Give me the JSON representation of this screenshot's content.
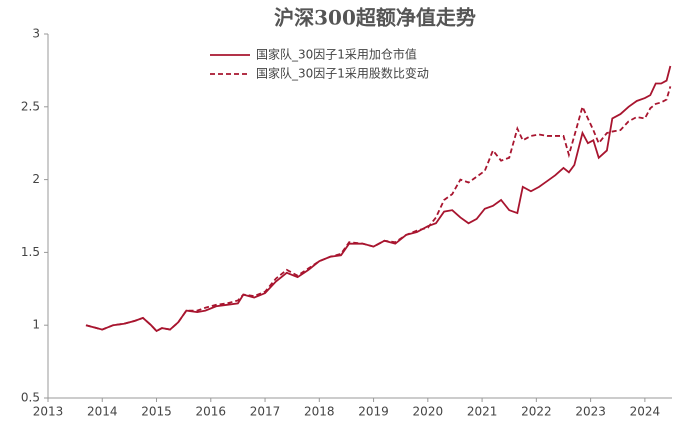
{
  "chart_data": {
    "type": "line",
    "title": "沪深300超额净值走势",
    "x": [
      2013.7,
      2013.9,
      2014.0,
      2014.2,
      2014.4,
      2014.6,
      2014.75,
      2014.9,
      2015.0,
      2015.1,
      2015.25,
      2015.4,
      2015.55,
      2015.75,
      2015.9,
      2016.1,
      2016.3,
      2016.5,
      2016.6,
      2016.8,
      2017.0,
      2017.2,
      2017.4,
      2017.6,
      2017.8,
      2018.0,
      2018.2,
      2018.4,
      2018.55,
      2018.8,
      2019.0,
      2019.2,
      2019.4,
      2019.6,
      2019.8,
      2020.0,
      2020.15,
      2020.3,
      2020.45,
      2020.6,
      2020.75,
      2020.9,
      2021.05,
      2021.2,
      2021.35,
      2021.5,
      2021.65,
      2021.75,
      2021.9,
      2022.05,
      2022.2,
      2022.35,
      2022.5,
      2022.6,
      2022.7,
      2022.85,
      2022.95,
      2023.05,
      2023.15,
      2023.3,
      2023.4,
      2023.55,
      2023.7,
      2023.85,
      2024.0,
      2024.1,
      2024.2,
      2024.3,
      2024.4,
      2024.47
    ],
    "series": [
      {
        "name": "国家队_30因子1采用加仓市值",
        "color": "#a8152f",
        "style": "solid",
        "values": [
          1.0,
          0.98,
          0.97,
          1.0,
          1.01,
          1.03,
          1.05,
          1.0,
          0.96,
          0.98,
          0.97,
          1.02,
          1.1,
          1.09,
          1.1,
          1.13,
          1.14,
          1.15,
          1.21,
          1.19,
          1.22,
          1.3,
          1.36,
          1.33,
          1.38,
          1.44,
          1.47,
          1.48,
          1.56,
          1.56,
          1.54,
          1.58,
          1.56,
          1.62,
          1.64,
          1.68,
          1.7,
          1.78,
          1.79,
          1.74,
          1.7,
          1.73,
          1.8,
          1.82,
          1.86,
          1.79,
          1.77,
          1.95,
          1.92,
          1.95,
          1.99,
          2.03,
          2.08,
          2.05,
          2.1,
          2.32,
          2.25,
          2.27,
          2.15,
          2.2,
          2.42,
          2.45,
          2.5,
          2.54,
          2.56,
          2.58,
          2.66,
          2.66,
          2.68,
          2.78
        ]
      },
      {
        "name": "国家队_30因子1采用股数比变动",
        "color": "#a8152f",
        "style": "dashed",
        "values": [
          1.0,
          0.98,
          0.97,
          1.0,
          1.01,
          1.03,
          1.05,
          1.0,
          0.96,
          0.98,
          0.97,
          1.02,
          1.1,
          1.1,
          1.12,
          1.14,
          1.15,
          1.17,
          1.21,
          1.2,
          1.23,
          1.32,
          1.38,
          1.34,
          1.39,
          1.44,
          1.47,
          1.49,
          1.57,
          1.56,
          1.54,
          1.58,
          1.57,
          1.62,
          1.65,
          1.67,
          1.74,
          1.86,
          1.9,
          2.0,
          1.98,
          2.02,
          2.06,
          2.2,
          2.13,
          2.15,
          2.35,
          2.27,
          2.3,
          2.31,
          2.3,
          2.3,
          2.3,
          2.17,
          2.3,
          2.5,
          2.42,
          2.34,
          2.25,
          2.32,
          2.33,
          2.34,
          2.4,
          2.43,
          2.42,
          2.49,
          2.52,
          2.53,
          2.55,
          2.64
        ]
      }
    ],
    "xlim": [
      2013,
      2024.5
    ],
    "xticks": [
      2013,
      2014,
      2015,
      2016,
      2017,
      2018,
      2019,
      2020,
      2021,
      2022,
      2023,
      2024
    ],
    "ylim": [
      0.5,
      3
    ],
    "yticks": [
      0.5,
      1,
      1.5,
      2,
      2.5,
      3
    ],
    "grid": false
  }
}
